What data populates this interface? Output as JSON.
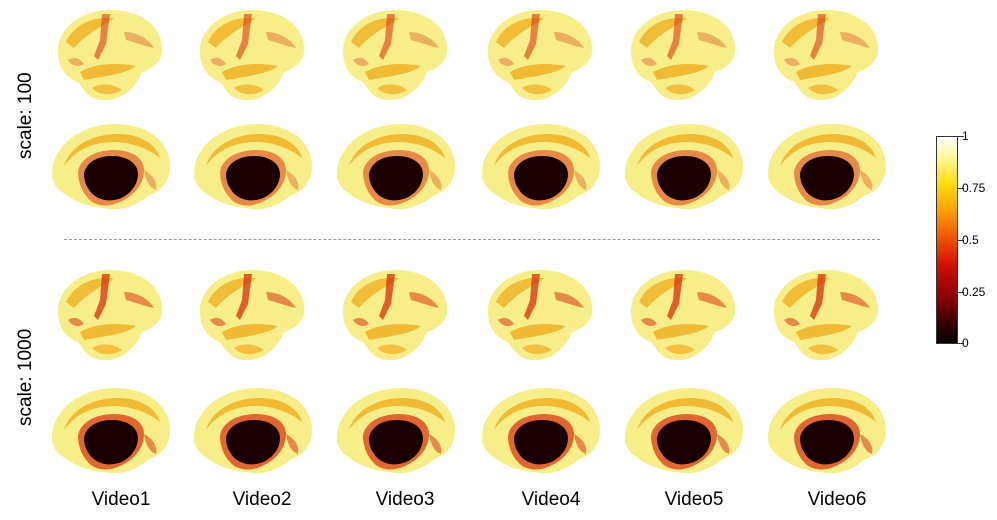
{
  "rows": {
    "top_label": "scale: 100",
    "bottom_label": "scale: 1000"
  },
  "columns": [
    "Video1",
    "Video2",
    "Video3",
    "Video4",
    "Video5",
    "Video6"
  ],
  "colorbar": {
    "ticks": [
      "1",
      "0.75",
      "0.5",
      "0.25",
      "0"
    ],
    "colormap": [
      "#000000",
      "#8b0000",
      "#e02000",
      "#ff8c00",
      "#ffe020",
      "#ffffff"
    ]
  },
  "colors": {
    "surface_light": "#f7ee8a",
    "surface_mid": "#f0b42a",
    "surface_hot": "#d83a10",
    "medial_wall": "#1a0000"
  }
}
